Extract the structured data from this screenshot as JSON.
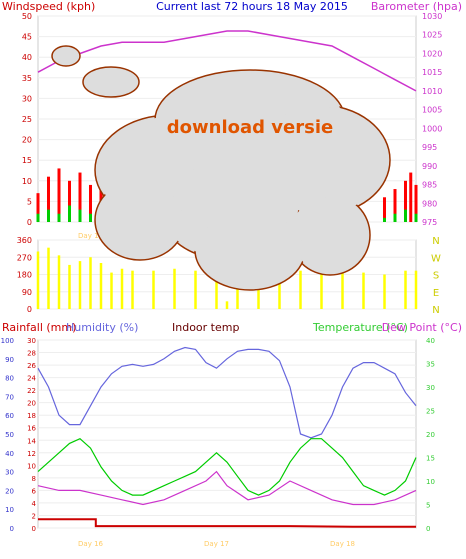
{
  "header": {
    "left_label": "Windspeed (kph)",
    "center_label": "Current last 72 hours 18 May 2015",
    "right_label": "Barometer (hpa)"
  },
  "overlay": {
    "badge_text": "download versie"
  },
  "colors": {
    "wind": "#ff0000",
    "gust": "#00cc00",
    "pressure": "#cc33cc",
    "direction": "#ffff00",
    "humidity": "#6666dd",
    "temperature": "#00cc00",
    "dewpoint": "#cc33cc",
    "rain": "#cc0000",
    "header_blue": "#0000cc",
    "axis_left": "#cc0000",
    "axis_right": "#cc33cc",
    "axis_dir": "#cccc00",
    "axis_temp": "#33cc33",
    "axis_hum": "#3333cc",
    "indoor": "#660000",
    "day_label": "#ffcc66",
    "cloud_fill": "#dddddd",
    "cloud_stroke": "#993300",
    "badge": "#e05500"
  },
  "chart_data": [
    {
      "type": "line",
      "name_key": "wind-pressure",
      "y_left_ticks": [
        "0",
        "5",
        "10",
        "15",
        "20",
        "25",
        "30",
        "35",
        "40",
        "45",
        "50"
      ],
      "y_left_range": [
        0,
        50
      ],
      "y_right_ticks": [
        "975",
        "980",
        "985",
        "990",
        "995",
        "1000",
        "1005",
        "1010",
        "1015",
        "1020",
        "1025",
        "1030"
      ],
      "y_right_range": [
        975,
        1030
      ],
      "x_range": [
        0,
        72
      ],
      "x_labels": [
        "Day 16"
      ],
      "x_label_at": [
        10
      ],
      "series": [
        {
          "label": "Windspeed (kph)",
          "axis": "left",
          "x": [
            0,
            2,
            4,
            6,
            8,
            10,
            12,
            66,
            68,
            70,
            71,
            72
          ],
          "values": [
            7,
            11,
            13,
            10,
            12,
            9,
            8,
            6,
            8,
            10,
            12,
            9
          ]
        },
        {
          "label": "gust",
          "axis": "left",
          "x": [
            0,
            2,
            4,
            6,
            8,
            10,
            12,
            66,
            68,
            70,
            72
          ],
          "values": [
            2,
            3,
            2,
            4,
            3,
            2,
            1,
            1,
            2,
            3,
            2
          ]
        },
        {
          "label": "Barometer (hpa)",
          "axis": "right",
          "x": [
            0,
            4,
            8,
            12,
            16,
            20,
            24,
            28,
            32,
            36,
            40,
            44,
            48,
            52,
            56,
            60,
            64,
            68,
            72
          ],
          "values": [
            1015,
            1018,
            1020,
            1022,
            1023,
            1023,
            1023,
            1024,
            1025,
            1026,
            1026,
            1025,
            1024,
            1023,
            1022,
            1019,
            1016,
            1013,
            1010
          ]
        }
      ]
    },
    {
      "type": "line",
      "name_key": "wind-direction",
      "y_left_ticks": [
        "0",
        "90",
        "180",
        "270",
        "360"
      ],
      "y_left_range": [
        0,
        360
      ],
      "y_right_ticks": [
        "N",
        "W",
        "S",
        "E",
        "N"
      ],
      "x_range": [
        0,
        72
      ],
      "series": [
        {
          "label": "direction",
          "x": [
            0,
            2,
            4,
            6,
            8,
            10,
            12,
            14,
            16,
            18,
            22,
            26,
            30,
            34,
            36,
            38,
            42,
            46,
            50,
            54,
            58,
            62,
            66,
            70,
            72
          ],
          "values": [
            300,
            320,
            280,
            230,
            250,
            270,
            240,
            190,
            210,
            200,
            200,
            210,
            200,
            150,
            40,
            180,
            200,
            200,
            200,
            210,
            200,
            190,
            180,
            200,
            200
          ]
        }
      ]
    },
    {
      "type": "line",
      "name_key": "temp-humidity-rain",
      "legend": [
        "Rainfall (mm)",
        "Humidity (%)",
        "Indoor temp",
        "Temperature (°C)",
        "Dew Point (°C)"
      ],
      "y_rain_ticks": [
        "0",
        "2",
        "4",
        "6",
        "8",
        "10",
        "12",
        "14",
        "16",
        "18",
        "20",
        "22",
        "24",
        "26",
        "28",
        "30"
      ],
      "y_rain_range": [
        0,
        30
      ],
      "y_hum_ticks": [
        "0",
        "10",
        "20",
        "30",
        "40",
        "50",
        "60",
        "70",
        "80",
        "90",
        "100"
      ],
      "y_hum_range": [
        0,
        100
      ],
      "y_temp_ticks": [
        "0",
        "5",
        "10",
        "15",
        "20",
        "25",
        "30",
        "35",
        "40"
      ],
      "y_temp_range": [
        0,
        40
      ],
      "x_range": [
        0,
        72
      ],
      "x_labels": [
        "Day 16",
        "Day 17",
        "Day 18"
      ],
      "x_label_at": [
        10,
        34,
        58
      ],
      "series": [
        {
          "label": "Humidity (%)",
          "axis": "hum",
          "x": [
            0,
            2,
            4,
            6,
            8,
            10,
            12,
            14,
            16,
            18,
            20,
            22,
            24,
            26,
            28,
            30,
            32,
            34,
            36,
            38,
            40,
            42,
            44,
            46,
            48,
            50,
            52,
            54,
            56,
            58,
            60,
            62,
            64,
            66,
            68,
            70,
            72
          ],
          "values": [
            85,
            75,
            60,
            55,
            55,
            65,
            75,
            82,
            86,
            87,
            86,
            87,
            90,
            94,
            96,
            95,
            88,
            85,
            90,
            94,
            95,
            95,
            94,
            89,
            75,
            50,
            48,
            50,
            60,
            75,
            85,
            88,
            88,
            85,
            82,
            72,
            65
          ]
        },
        {
          "label": "Temperature (°C)",
          "axis": "temp",
          "x": [
            0,
            2,
            4,
            6,
            8,
            10,
            12,
            14,
            16,
            18,
            20,
            22,
            24,
            26,
            28,
            30,
            32,
            34,
            36,
            38,
            40,
            42,
            44,
            46,
            48,
            50,
            52,
            54,
            56,
            58,
            60,
            62,
            64,
            66,
            68,
            70,
            72
          ],
          "values": [
            12,
            14,
            16,
            18,
            19,
            17,
            13,
            10,
            8,
            7,
            7,
            8,
            9,
            10,
            11,
            12,
            14,
            16,
            14,
            11,
            8,
            7,
            8,
            10,
            14,
            17,
            19,
            19,
            17,
            15,
            12,
            9,
            8,
            7,
            8,
            10,
            15
          ]
        },
        {
          "label": "Dew Point (°C)",
          "axis": "temp",
          "x": [
            0,
            4,
            8,
            12,
            16,
            20,
            24,
            28,
            32,
            34,
            36,
            40,
            44,
            48,
            52,
            56,
            60,
            64,
            68,
            72
          ],
          "values": [
            9,
            8,
            8,
            7,
            6,
            5,
            6,
            8,
            10,
            12,
            9,
            6,
            7,
            10,
            8,
            6,
            5,
            5,
            6,
            8
          ]
        },
        {
          "label": "Rainfall (mm)",
          "axis": "rain",
          "x": [
            0,
            11,
            11.01,
            24,
            48,
            60,
            72
          ],
          "values": [
            1.4,
            1.4,
            0.3,
            0.3,
            0.3,
            0.2,
            0.2
          ]
        }
      ]
    }
  ]
}
